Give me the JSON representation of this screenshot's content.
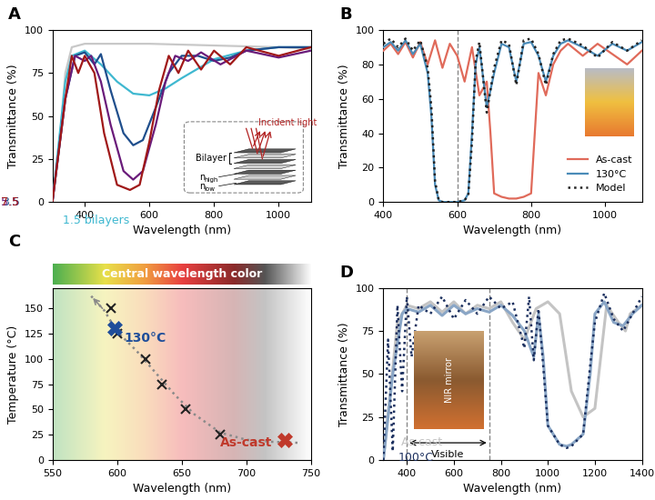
{
  "chart_data": [
    {
      "type": "line",
      "title": "A",
      "x_label": "Wavelength (nm)",
      "y_label": "Transmittance (%)",
      "xlim": [
        300,
        1100
      ],
      "xticks": [
        400,
        600,
        800,
        1000
      ],
      "ylim": [
        0,
        100
      ],
      "yticks": [
        0,
        25,
        50,
        75,
        100
      ],
      "series": [
        {
          "color": "#c8c8c8",
          "x": [
            300,
            320,
            340,
            360,
            400,
            500,
            600,
            800,
            1000,
            1100
          ],
          "values": [
            0,
            30,
            75,
            90,
            92,
            92,
            92,
            91,
            90,
            89
          ]
        },
        {
          "name": "1.5 bilayers",
          "color": "#3fb8d0",
          "x": [
            300,
            340,
            360,
            400,
            450,
            500,
            550,
            600,
            650,
            700,
            800,
            900,
            1000,
            1100
          ],
          "values": [
            0,
            70,
            85,
            88,
            80,
            70,
            63,
            62,
            66,
            72,
            83,
            88,
            90,
            90
          ]
        },
        {
          "name": "3.5",
          "color": "#1f4e8c",
          "x": [
            300,
            340,
            370,
            400,
            430,
            450,
            480,
            520,
            550,
            580,
            620,
            660,
            700,
            750,
            800,
            850,
            900,
            1000,
            1100
          ],
          "values": [
            0,
            60,
            85,
            87,
            80,
            86,
            65,
            40,
            33,
            36,
            55,
            75,
            85,
            85,
            82,
            84,
            88,
            90,
            90
          ]
        },
        {
          "name": "5.5",
          "color": "#6a1b7a",
          "x": [
            300,
            340,
            370,
            400,
            420,
            450,
            480,
            520,
            550,
            580,
            620,
            650,
            680,
            720,
            760,
            820,
            900,
            1000,
            1100
          ],
          "values": [
            0,
            60,
            85,
            82,
            85,
            70,
            45,
            18,
            13,
            18,
            45,
            70,
            85,
            82,
            87,
            80,
            88,
            84,
            88
          ]
        },
        {
          "name": "7.5",
          "color": "#a01818",
          "x": [
            300,
            340,
            360,
            380,
            400,
            430,
            460,
            500,
            540,
            570,
            600,
            630,
            660,
            690,
            720,
            760,
            800,
            850,
            900,
            1000,
            1100
          ],
          "values": [
            0,
            60,
            85,
            75,
            85,
            75,
            40,
            10,
            7,
            10,
            35,
            65,
            85,
            75,
            88,
            77,
            88,
            80,
            90,
            85,
            90
          ]
        }
      ],
      "inset": {
        "incident": "Incident light",
        "bilayer": "Bilayer",
        "n": "n",
        "subscripts": [
          "high",
          "low"
        ]
      }
    },
    {
      "type": "line",
      "title": "B",
      "x_label": "Wavelength (nm)",
      "y_label": "Transmittance (%)",
      "xlim": [
        400,
        1100
      ],
      "xticks": [
        400,
        600,
        800,
        1000
      ],
      "ylim": [
        0,
        100
      ],
      "yticks": [
        0,
        20,
        40,
        60,
        80,
        100
      ],
      "legend": "lower right",
      "vlines": [
        600
      ],
      "series": [
        {
          "name": "As-cast",
          "color": "#e06a5a",
          "line_style": "solid",
          "x": [
            400,
            420,
            440,
            460,
            480,
            500,
            520,
            540,
            560,
            580,
            600,
            620,
            640,
            660,
            680,
            690,
            700,
            720,
            740,
            760,
            780,
            800,
            810,
            820,
            840,
            860,
            880,
            900,
            940,
            980,
            1020,
            1060,
            1100
          ],
          "values": [
            88,
            92,
            86,
            93,
            84,
            93,
            80,
            94,
            78,
            92,
            85,
            70,
            90,
            62,
            70,
            40,
            5,
            3,
            2,
            2,
            3,
            5,
            40,
            75,
            62,
            80,
            88,
            92,
            85,
            92,
            86,
            80,
            88
          ]
        },
        {
          "name": "130°C",
          "color": "#4a8bb8",
          "line_style": "solid",
          "x": [
            400,
            420,
            440,
            460,
            480,
            500,
            520,
            530,
            540,
            550,
            560,
            580,
            600,
            620,
            630,
            640,
            650,
            660,
            680,
            700,
            720,
            740,
            760,
            780,
            800,
            820,
            840,
            860,
            880,
            900,
            940,
            980,
            1020,
            1060,
            1100
          ],
          "values": [
            90,
            93,
            88,
            94,
            86,
            92,
            75,
            50,
            10,
            1,
            0,
            0,
            0,
            1,
            5,
            40,
            80,
            90,
            55,
            75,
            92,
            90,
            70,
            92,
            93,
            85,
            70,
            85,
            92,
            94,
            90,
            85,
            92,
            88,
            93
          ]
        },
        {
          "name": "Model",
          "color": "#222222",
          "line_style": "dotted",
          "x": [
            400,
            420,
            440,
            460,
            480,
            500,
            520,
            530,
            540,
            550,
            560,
            580,
            600,
            620,
            630,
            640,
            650,
            660,
            680,
            700,
            720,
            740,
            760,
            780,
            800,
            820,
            840,
            860,
            880,
            900,
            940,
            980,
            1020,
            1060,
            1100
          ],
          "values": [
            92,
            95,
            90,
            95,
            88,
            94,
            78,
            55,
            12,
            1,
            0,
            0,
            0,
            1,
            4,
            35,
            82,
            93,
            52,
            78,
            94,
            92,
            68,
            94,
            95,
            86,
            68,
            86,
            94,
            95,
            91,
            84,
            93,
            88,
            94
          ]
        }
      ]
    },
    {
      "type": "scatter",
      "title": "C",
      "x_label": "Wavelength (nm)",
      "y_label": "Temperature (°C)",
      "xlim": [
        550,
        750
      ],
      "xticks": [
        550,
        600,
        650,
        700,
        750
      ],
      "ylim": [
        0,
        170
      ],
      "yticks": [
        0,
        25,
        50,
        75,
        100,
        125,
        150
      ],
      "color_scale_label": "Central wavelength color",
      "series": [
        {
          "type": "line",
          "line_style": "dotted",
          "color": "#8a8a8a",
          "x": [
            580,
            590,
            600,
            615,
            630,
            645,
            660,
            680,
            700,
            720,
            740
          ],
          "values": [
            162,
            148,
            127,
            108,
            86,
            64,
            45,
            27,
            20,
            18,
            17
          ]
        },
        {
          "type": "scatter",
          "marker": "cross",
          "color": "#222222",
          "x": [
            595,
            600,
            622,
            635,
            653,
            680
          ],
          "values": [
            150,
            125,
            100,
            75,
            50,
            25
          ]
        },
        {
          "name": "130°C",
          "type": "scatter",
          "marker": "bold_cross",
          "color": "#1f4e9a",
          "x": [
            598
          ],
          "values": [
            130
          ]
        },
        {
          "name": "As-cast",
          "type": "scatter",
          "marker": "bold_cross",
          "color": "#c0392b",
          "x": [
            730
          ],
          "values": [
            20
          ]
        }
      ]
    },
    {
      "type": "line",
      "title": "D",
      "x_label": "Wavelength (nm)",
      "y_label": "Transmittance (%)",
      "xlim": [
        300,
        1400
      ],
      "xticks": [
        400,
        600,
        800,
        1000,
        1200,
        1400
      ],
      "ylim": [
        0,
        100
      ],
      "yticks": [
        0,
        25,
        50,
        75,
        100
      ],
      "vlines": [
        400,
        750
      ],
      "span_label": "Visible",
      "inset_label": "NIR mirror",
      "series": [
        {
          "name": "As cast",
          "color": "#c4c4c4",
          "line_style": "solid",
          "x": [
            300,
            330,
            360,
            400,
            450,
            500,
            550,
            600,
            650,
            700,
            750,
            800,
            850,
            900,
            950,
            1000,
            1050,
            1100,
            1150,
            1200,
            1250,
            1300,
            1330,
            1350,
            1400
          ],
          "values": [
            0,
            40,
            80,
            90,
            88,
            92,
            86,
            92,
            85,
            90,
            88,
            92,
            80,
            70,
            88,
            92,
            85,
            40,
            25,
            30,
            90,
            80,
            75,
            85,
            90
          ]
        },
        {
          "color": "#8aa6c6",
          "line_style": "solid",
          "x": [
            300,
            340,
            380,
            400,
            450,
            500,
            550,
            600,
            650,
            700,
            750,
            800,
            850,
            900,
            940,
            960,
            980,
            1000,
            1050,
            1080,
            1100,
            1150,
            1180,
            1200,
            1240,
            1280,
            1320,
            1360,
            1400
          ],
          "values": [
            0,
            50,
            85,
            88,
            86,
            90,
            84,
            90,
            85,
            88,
            86,
            90,
            84,
            75,
            60,
            85,
            60,
            20,
            9,
            8,
            9,
            15,
            50,
            85,
            92,
            80,
            78,
            85,
            90
          ]
        },
        {
          "name": "100°C",
          "color": "#1b2f5e",
          "line_style": "dotted",
          "x": [
            300,
            320,
            340,
            360,
            380,
            400,
            420,
            450,
            500,
            550,
            600,
            650,
            700,
            750,
            800,
            850,
            900,
            920,
            940,
            960,
            980,
            1000,
            1050,
            1080,
            1100,
            1150,
            1180,
            1200,
            1240,
            1280,
            1320,
            1360,
            1400
          ],
          "values": [
            0,
            70,
            5,
            90,
            40,
            95,
            60,
            90,
            85,
            95,
            82,
            93,
            85,
            95,
            88,
            92,
            65,
            95,
            58,
            88,
            55,
            20,
            9,
            7,
            8,
            15,
            55,
            80,
            97,
            82,
            75,
            85,
            95
          ]
        }
      ]
    }
  ]
}
